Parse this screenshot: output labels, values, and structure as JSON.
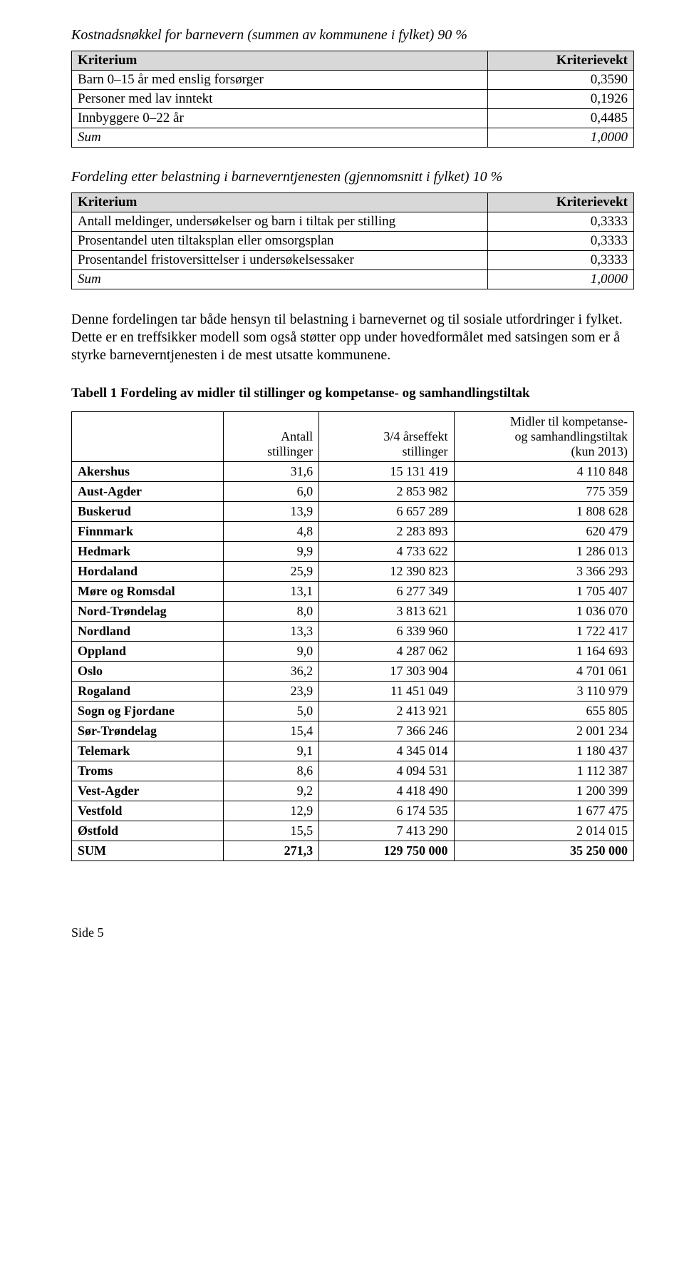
{
  "section1": {
    "title": "Kostnadsnøkkel for barnevern (summen av kommunene i fylket) 90 %",
    "header_left": "Kriterium",
    "header_right": "Kriterievekt",
    "rows": [
      {
        "label": "Barn 0–15 år med enslig forsørger",
        "value": "0,3590"
      },
      {
        "label": "Personer med lav inntekt",
        "value": "0,1926"
      },
      {
        "label": "Innbyggere 0–22 år",
        "value": "0,4485"
      }
    ],
    "sum_label": "Sum",
    "sum_value": "1,0000"
  },
  "section2": {
    "title": "Fordeling etter belastning i barneverntjenesten (gjennomsnitt i fylket) 10 %",
    "header_left": "Kriterium",
    "header_right": "Kriterievekt",
    "rows": [
      {
        "label": "Antall meldinger, undersøkelser og barn i tiltak per stilling",
        "value": "0,3333"
      },
      {
        "label": "Prosentandel uten tiltaksplan eller omsorgsplan",
        "value": "0,3333"
      },
      {
        "label": "Prosentandel fristoversittelser i undersøkelsessaker",
        "value": "0,3333"
      }
    ],
    "sum_label": "Sum",
    "sum_value": "1,0000"
  },
  "paragraph": "Denne fordelingen tar både hensyn til belastning i barnevernet og til sosiale utfordringer i fylket. Dette er en treffsikker modell som også støtter opp under hovedformålet med satsingen som er å styrke barneverntjenesten i de mest utsatte kommunene.",
  "tabell1": {
    "heading": "Tabell 1 Fordeling av midler til stillinger og kompetanse- og samhandlingstiltak",
    "col1": "Antall stillinger",
    "col2": "3/4 årseffekt stillinger",
    "col3": "Midler til kompetanse- og samhandlingstiltak (kun 2013)",
    "rows": [
      {
        "name": "Akershus",
        "a": "31,6",
        "b": "15 131 419",
        "c": "4 110 848"
      },
      {
        "name": "Aust-Agder",
        "a": "6,0",
        "b": "2 853 982",
        "c": "775 359"
      },
      {
        "name": "Buskerud",
        "a": "13,9",
        "b": "6 657 289",
        "c": "1 808 628"
      },
      {
        "name": "Finnmark",
        "a": "4,8",
        "b": "2 283 893",
        "c": "620 479"
      },
      {
        "name": "Hedmark",
        "a": "9,9",
        "b": "4 733 622",
        "c": "1 286 013"
      },
      {
        "name": "Hordaland",
        "a": "25,9",
        "b": "12 390 823",
        "c": "3 366 293"
      },
      {
        "name": "Møre og Romsdal",
        "a": "13,1",
        "b": "6 277 349",
        "c": "1 705 407"
      },
      {
        "name": "Nord-Trøndelag",
        "a": "8,0",
        "b": "3 813 621",
        "c": "1 036 070"
      },
      {
        "name": "Nordland",
        "a": "13,3",
        "b": "6 339 960",
        "c": "1 722 417"
      },
      {
        "name": "Oppland",
        "a": "9,0",
        "b": "4 287 062",
        "c": "1 164 693"
      },
      {
        "name": "Oslo",
        "a": "36,2",
        "b": "17 303 904",
        "c": "4 701 061"
      },
      {
        "name": "Rogaland",
        "a": "23,9",
        "b": "11 451 049",
        "c": "3 110 979"
      },
      {
        "name": "Sogn og Fjordane",
        "a": "5,0",
        "b": "2 413 921",
        "c": "655 805"
      },
      {
        "name": "Sør-Trøndelag",
        "a": "15,4",
        "b": "7 366 246",
        "c": "2 001 234"
      },
      {
        "name": "Telemark",
        "a": "9,1",
        "b": "4 345 014",
        "c": "1 180 437"
      },
      {
        "name": "Troms",
        "a": "8,6",
        "b": "4 094 531",
        "c": "1 112 387"
      },
      {
        "name": "Vest-Agder",
        "a": "9,2",
        "b": "4 418 490",
        "c": "1 200 399"
      },
      {
        "name": "Vestfold",
        "a": "12,9",
        "b": "6 174 535",
        "c": "1 677 475"
      },
      {
        "name": "Østfold",
        "a": "15,5",
        "b": "7 413 290",
        "c": "2 014 015"
      }
    ],
    "sum_name": "SUM",
    "sum_a": "271,3",
    "sum_b": "129 750 000",
    "sum_c": "35 250 000"
  },
  "footer": "Side 5"
}
